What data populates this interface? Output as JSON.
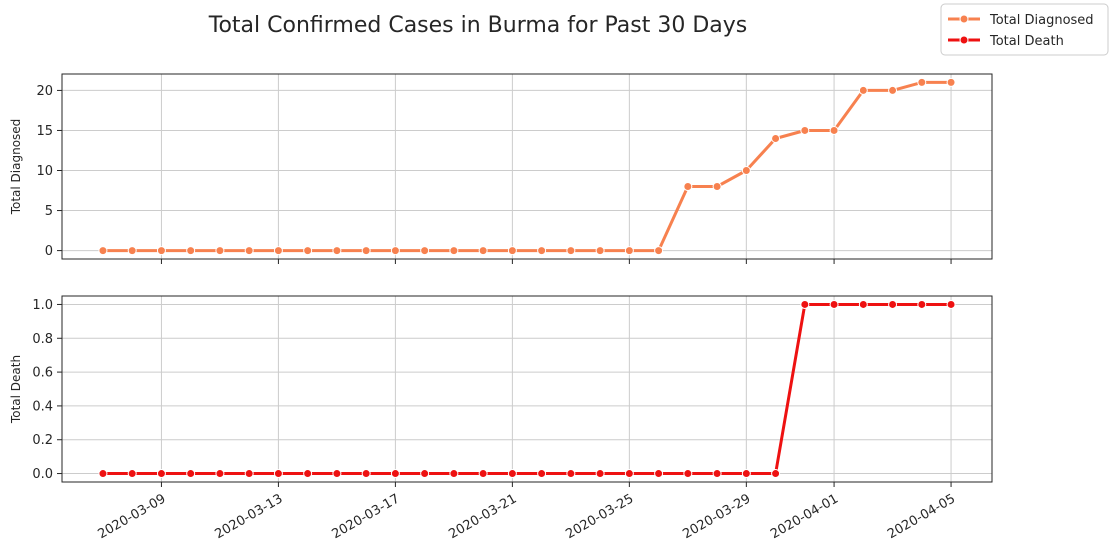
{
  "chart_data": {
    "type": "line",
    "title": "Total Confirmed Cases in Burma for Past 30 Days",
    "x": [
      "2020-03-07",
      "2020-03-08",
      "2020-03-09",
      "2020-03-10",
      "2020-03-11",
      "2020-03-12",
      "2020-03-13",
      "2020-03-14",
      "2020-03-15",
      "2020-03-16",
      "2020-03-17",
      "2020-03-18",
      "2020-03-19",
      "2020-03-20",
      "2020-03-21",
      "2020-03-22",
      "2020-03-23",
      "2020-03-24",
      "2020-03-25",
      "2020-03-26",
      "2020-03-27",
      "2020-03-28",
      "2020-03-29",
      "2020-03-30",
      "2020-03-31",
      "2020-04-01",
      "2020-04-02",
      "2020-04-03",
      "2020-04-04",
      "2020-04-05"
    ],
    "x_tick_labels": [
      "2020-03-09",
      "2020-03-13",
      "2020-03-17",
      "2020-03-21",
      "2020-03-25",
      "2020-03-29",
      "2020-04-01",
      "2020-04-05"
    ],
    "legend": {
      "placement": "top-right",
      "entries": [
        "Total Diagnosed",
        "Total Death"
      ]
    },
    "grid": true,
    "subplots": [
      {
        "ylabel": "Total Diagnosed",
        "ylim": [
          -1.05,
          22.05
        ],
        "yticks": [
          0,
          5,
          10,
          15,
          20
        ],
        "ytick_labels": [
          "0",
          "5",
          "10",
          "15",
          "20"
        ],
        "series": [
          {
            "name": "Total Diagnosed",
            "color": "#f7814f",
            "values": [
              0,
              0,
              0,
              0,
              0,
              0,
              0,
              0,
              0,
              0,
              0,
              0,
              0,
              0,
              0,
              0,
              0,
              0,
              0,
              0,
              8,
              8,
              10,
              14,
              15,
              15,
              20,
              20,
              21,
              21
            ]
          }
        ]
      },
      {
        "ylabel": "Total Death",
        "ylim": [
          -0.05,
          1.05
        ],
        "yticks": [
          0,
          0.2,
          0.4,
          0.6,
          0.8,
          1.0
        ],
        "ytick_labels": [
          "0.0",
          "0.2",
          "0.4",
          "0.6",
          "0.8",
          "1.0"
        ],
        "series": [
          {
            "name": "Total Death",
            "color": "#ee1111",
            "values": [
              0,
              0,
              0,
              0,
              0,
              0,
              0,
              0,
              0,
              0,
              0,
              0,
              0,
              0,
              0,
              0,
              0,
              0,
              0,
              0,
              0,
              0,
              0,
              0,
              1,
              1,
              1,
              1,
              1,
              1
            ]
          }
        ]
      }
    ]
  }
}
